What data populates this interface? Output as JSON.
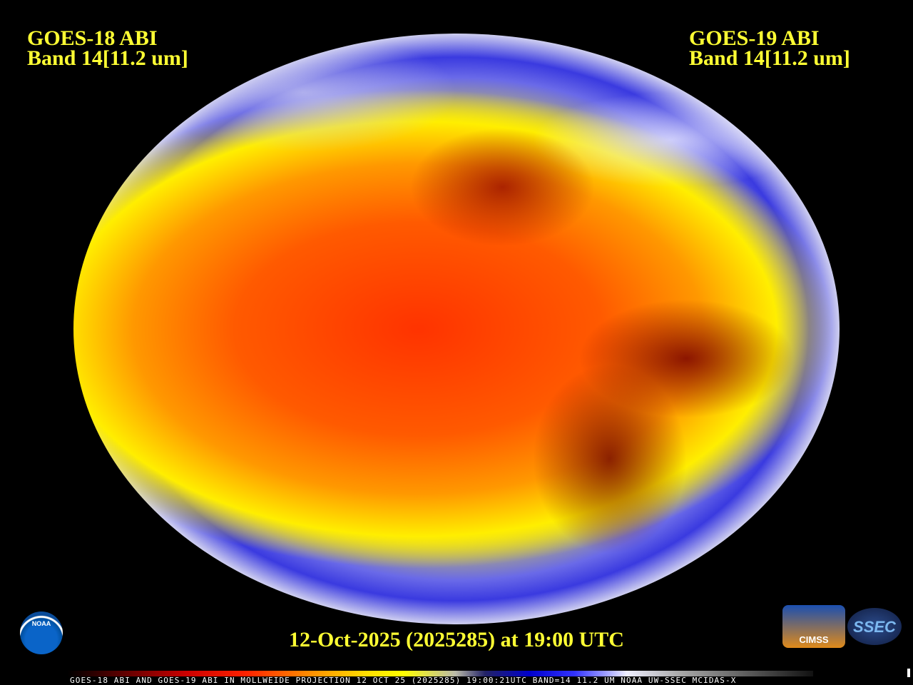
{
  "left_label": {
    "line1": "GOES-18 ABI",
    "line2": "Band 14[11.2 um]"
  },
  "right_label": {
    "line1": "GOES-19 ABI",
    "line2": "Band 14[11.2 um]"
  },
  "title": "12-Oct-2025 (2025285) at 19:00 UTC",
  "footer": "GOES-18 ABI AND GOES-19 ABI IN MOLLWEIDE PROJECTION 12 OCT 25 (2025285) 19:00:21UTC BAND=14 11.2 UM NOAA UW-SSEC MCIDAS-X",
  "logos": {
    "noaa": "NOAA",
    "cimss": "CIMSS",
    "ssec": "SSEC"
  },
  "colors": {
    "label": "#ffff33",
    "background": "#000000"
  }
}
